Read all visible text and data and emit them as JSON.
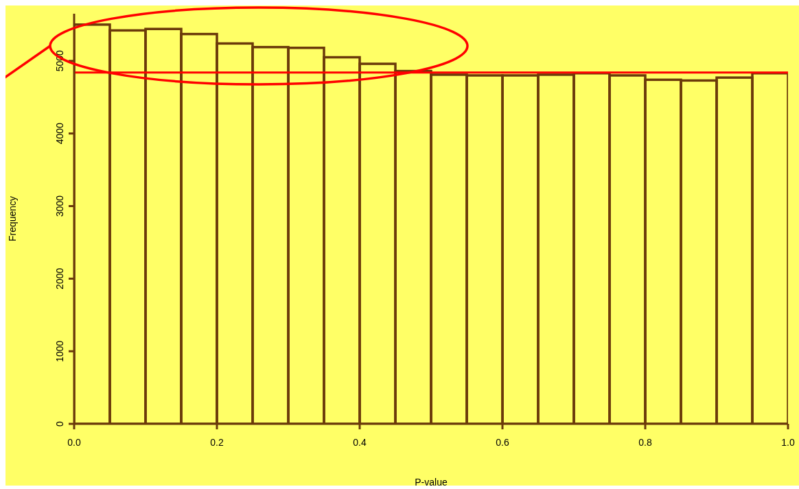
{
  "chart_data": {
    "type": "histogram",
    "xlabel": "P-value",
    "ylabel": "Frequency",
    "bins": [
      0,
      0.05,
      0.1,
      0.15,
      0.2,
      0.25,
      0.3,
      0.35,
      0.4,
      0.45,
      0.5,
      0.55,
      0.6,
      0.65,
      0.7,
      0.75,
      0.8,
      0.85,
      0.9,
      0.95,
      1.0
    ],
    "values": [
      5500,
      5420,
      5440,
      5370,
      5240,
      5190,
      5180,
      5050,
      4960,
      4860,
      4810,
      4800,
      4800,
      4810,
      4830,
      4800,
      4740,
      4730,
      4770,
      4830
    ],
    "color": "#6b3a0a",
    "xlim": [
      0,
      1
    ],
    "xticks": [
      {
        "value": 0,
        "label": "0.0"
      },
      0.2,
      0.4,
      0.6,
      0.8,
      {
        "value": 1,
        "label": "1.0"
      }
    ],
    "ylim": [
      0,
      5650
    ],
    "yticks": [
      0,
      1000,
      2000,
      3000,
      4000,
      5000
    ],
    "ref_lines": [
      {
        "axis": "y",
        "value": 4840,
        "color": "#ff0000"
      }
    ]
  }
}
